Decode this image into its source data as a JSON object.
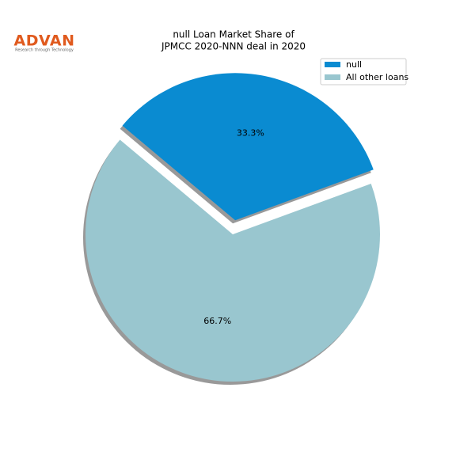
{
  "logo": {
    "name": "ADVAN",
    "tagline": "Research through Technology"
  },
  "chart_data": {
    "type": "pie",
    "title": [
      "null Loan Market Share of",
      "JPMCC 2020-NNN deal in 2020"
    ],
    "categories": [
      "null",
      "All other loans"
    ],
    "values": [
      33.3,
      66.7
    ],
    "value_labels": [
      "33.3%",
      "66.7%"
    ],
    "colors": [
      "#0a8bd1",
      "#99c6cf"
    ],
    "legend": "upper right"
  }
}
